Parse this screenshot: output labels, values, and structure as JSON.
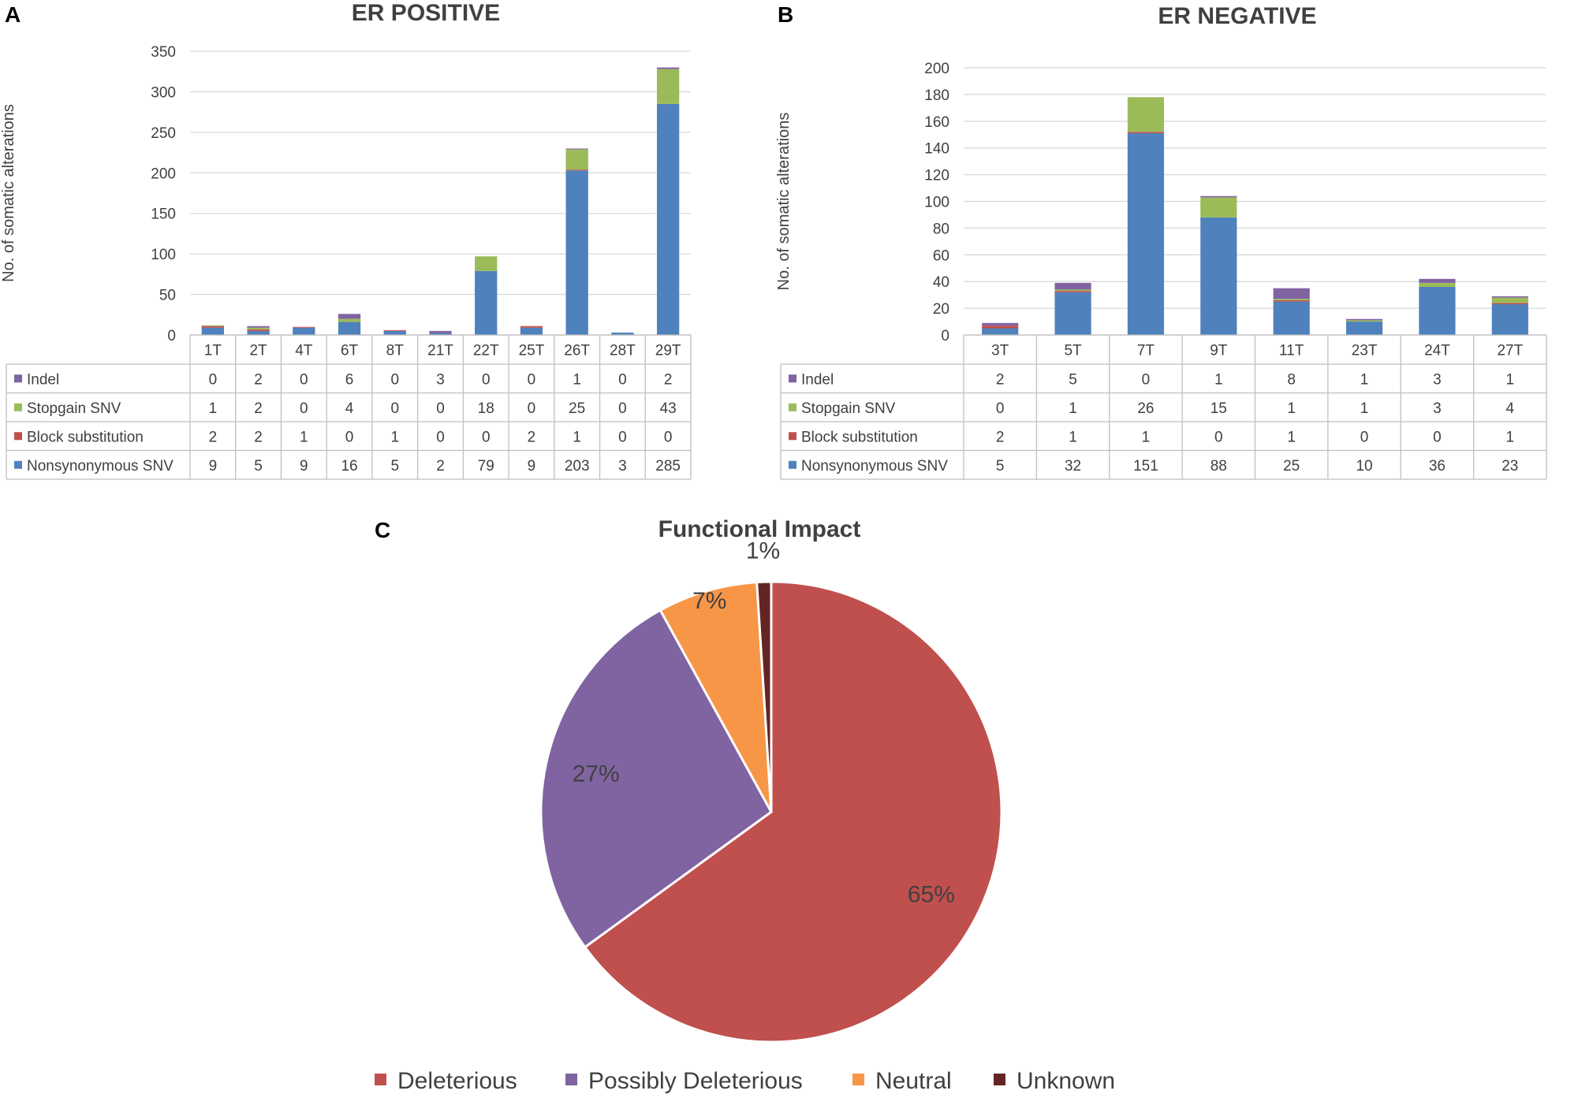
{
  "panels": {
    "a_letter": "A",
    "b_letter": "B",
    "c_letter": "C"
  },
  "colors": {
    "nonsynonymous": "#4f81bd",
    "block": "#c0504d",
    "stopgain": "#9bbb59",
    "indel": "#8064a2",
    "deleterious": "#c0504d",
    "possibly": "#8064a2",
    "neutral": "#f79646",
    "unknown": "#632523"
  },
  "chart_data": [
    {
      "type": "bar",
      "stacked": true,
      "title": "ER POSITIVE",
      "ylabel": "No. of somatic alterations",
      "xlabel": "",
      "ylim": [
        0,
        350
      ],
      "yticks": [
        0,
        50,
        100,
        150,
        200,
        250,
        300,
        350
      ],
      "grid": true,
      "categories": [
        "1T",
        "2T",
        "4T",
        "6T",
        "8T",
        "21T",
        "22T",
        "25T",
        "26T",
        "28T",
        "29T"
      ],
      "series": [
        {
          "name": "Nonsynonymous SNV",
          "values": [
            9,
            5,
            9,
            16,
            5,
            2,
            79,
            9,
            203,
            3,
            285
          ]
        },
        {
          "name": "Block substitution",
          "values": [
            2,
            2,
            1,
            0,
            1,
            0,
            0,
            2,
            1,
            0,
            0
          ]
        },
        {
          "name": "Stopgain SNV",
          "values": [
            1,
            2,
            0,
            4,
            0,
            0,
            18,
            0,
            25,
            0,
            43
          ]
        },
        {
          "name": "Indel",
          "values": [
            0,
            2,
            0,
            6,
            0,
            3,
            0,
            0,
            1,
            0,
            2
          ]
        }
      ]
    },
    {
      "type": "bar",
      "stacked": true,
      "title": "ER NEGATIVE",
      "ylabel": "No. of somatic alterations",
      "xlabel": "",
      "ylim": [
        0,
        200
      ],
      "yticks": [
        0,
        20,
        40,
        60,
        80,
        100,
        120,
        140,
        160,
        180,
        200
      ],
      "grid": true,
      "categories": [
        "3T",
        "5T",
        "7T",
        "9T",
        "11T",
        "23T",
        "24T",
        "27T"
      ],
      "series": [
        {
          "name": "Nonsynonymous SNV",
          "values": [
            5,
            32,
            151,
            88,
            25,
            10,
            36,
            23
          ]
        },
        {
          "name": "Block substitution",
          "values": [
            2,
            1,
            1,
            0,
            1,
            0,
            0,
            1
          ]
        },
        {
          "name": "Stopgain SNV",
          "values": [
            0,
            1,
            26,
            15,
            1,
            1,
            3,
            4
          ]
        },
        {
          "name": "Indel",
          "values": [
            2,
            5,
            0,
            1,
            8,
            1,
            3,
            1
          ]
        }
      ]
    },
    {
      "type": "pie",
      "title": "Functional  Impact",
      "labels": [
        "Deleterious",
        "Possibly Deleterious",
        "Neutral",
        "Unknown"
      ],
      "values": [
        65,
        27,
        7,
        1
      ],
      "value_labels": [
        "65%",
        "27%",
        "7%",
        "1%"
      ],
      "legend": "bottom"
    }
  ]
}
